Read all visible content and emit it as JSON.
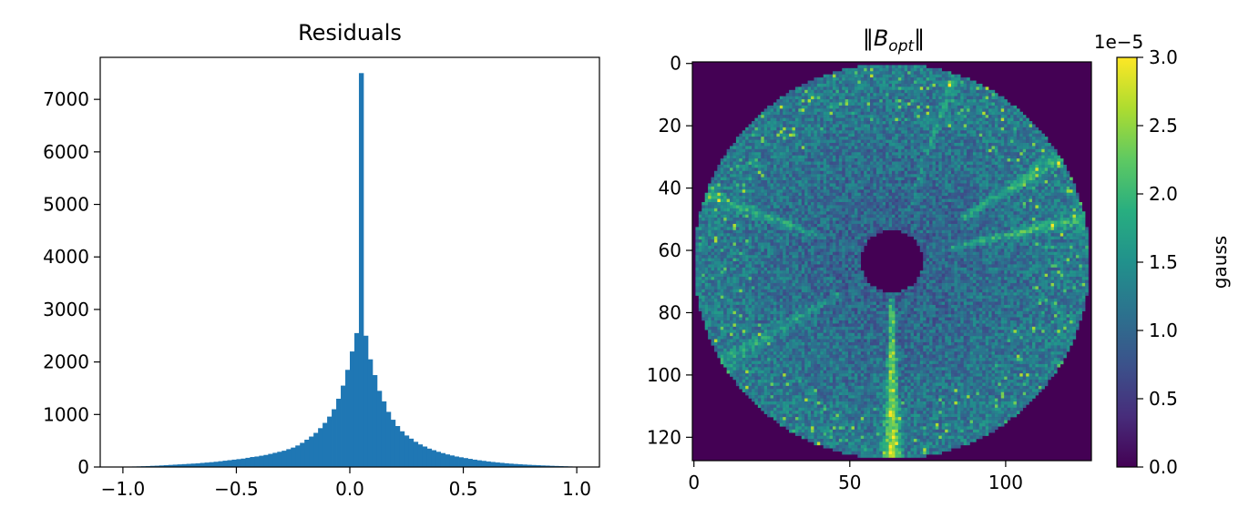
{
  "chart_data": [
    {
      "type": "bar",
      "subtype": "histogram",
      "title": "Residuals",
      "xlabel": "",
      "ylabel": "",
      "xlim": [
        -1.1,
        1.1
      ],
      "ylim": [
        0,
        7800
      ],
      "xticks": [
        -1.0,
        -0.5,
        0.0,
        0.5,
        1.0
      ],
      "xtick_labels": [
        "−1.0",
        "−0.5",
        "0.0",
        "0.5",
        "1.0"
      ],
      "yticks": [
        0,
        1000,
        2000,
        3000,
        4000,
        5000,
        6000,
        7000
      ],
      "ytick_labels": [
        "0",
        "1000",
        "2000",
        "3000",
        "4000",
        "5000",
        "6000",
        "7000"
      ],
      "bar_color": "#1f77b4",
      "bin_range": [
        -1.0,
        1.0
      ],
      "bin_count": 100,
      "values": [
        5,
        8,
        10,
        12,
        15,
        18,
        22,
        25,
        30,
        35,
        40,
        45,
        50,
        55,
        60,
        65,
        70,
        78,
        85,
        92,
        100,
        110,
        120,
        130,
        140,
        150,
        160,
        175,
        190,
        200,
        215,
        230,
        250,
        270,
        290,
        310,
        340,
        370,
        410,
        460,
        520,
        580,
        650,
        740,
        840,
        960,
        1100,
        1300,
        1550,
        1850,
        2200,
        2550,
        7500,
        2500,
        2050,
        1750,
        1450,
        1250,
        1050,
        900,
        780,
        680,
        600,
        540,
        480,
        430,
        390,
        350,
        320,
        290,
        265,
        240,
        220,
        200,
        185,
        170,
        155,
        140,
        128,
        117,
        106,
        96,
        87,
        79,
        71,
        64,
        58,
        52,
        47,
        42,
        38,
        34,
        30,
        27,
        23,
        20,
        17,
        14,
        11,
        8
      ]
    },
    {
      "type": "heatmap",
      "title_norm_symbol": "‖",
      "title_var": "B",
      "title_sub": "opt",
      "xticks": [
        0,
        50,
        100
      ],
      "xtick_labels": [
        "0",
        "50",
        "100"
      ],
      "yticks": [
        0,
        20,
        40,
        60,
        80,
        100,
        120
      ],
      "ytick_labels": [
        "0",
        "20",
        "40",
        "60",
        "80",
        "100",
        "120"
      ],
      "grid_size": 128,
      "colormap": "viridis",
      "background_color": "#440154",
      "outer_radius": 64,
      "inner_radius": 9.5,
      "colorbar": {
        "range": [
          0.0,
          3.0
        ],
        "ticks": [
          0.0,
          0.5,
          1.0,
          1.5,
          2.0,
          2.5,
          3.0
        ],
        "tick_labels": [
          "0.0",
          "0.5",
          "1.0",
          "1.5",
          "2.0",
          "2.5",
          "3.0"
        ],
        "offset_label": "1e−5",
        "label": "gauss"
      }
    }
  ]
}
